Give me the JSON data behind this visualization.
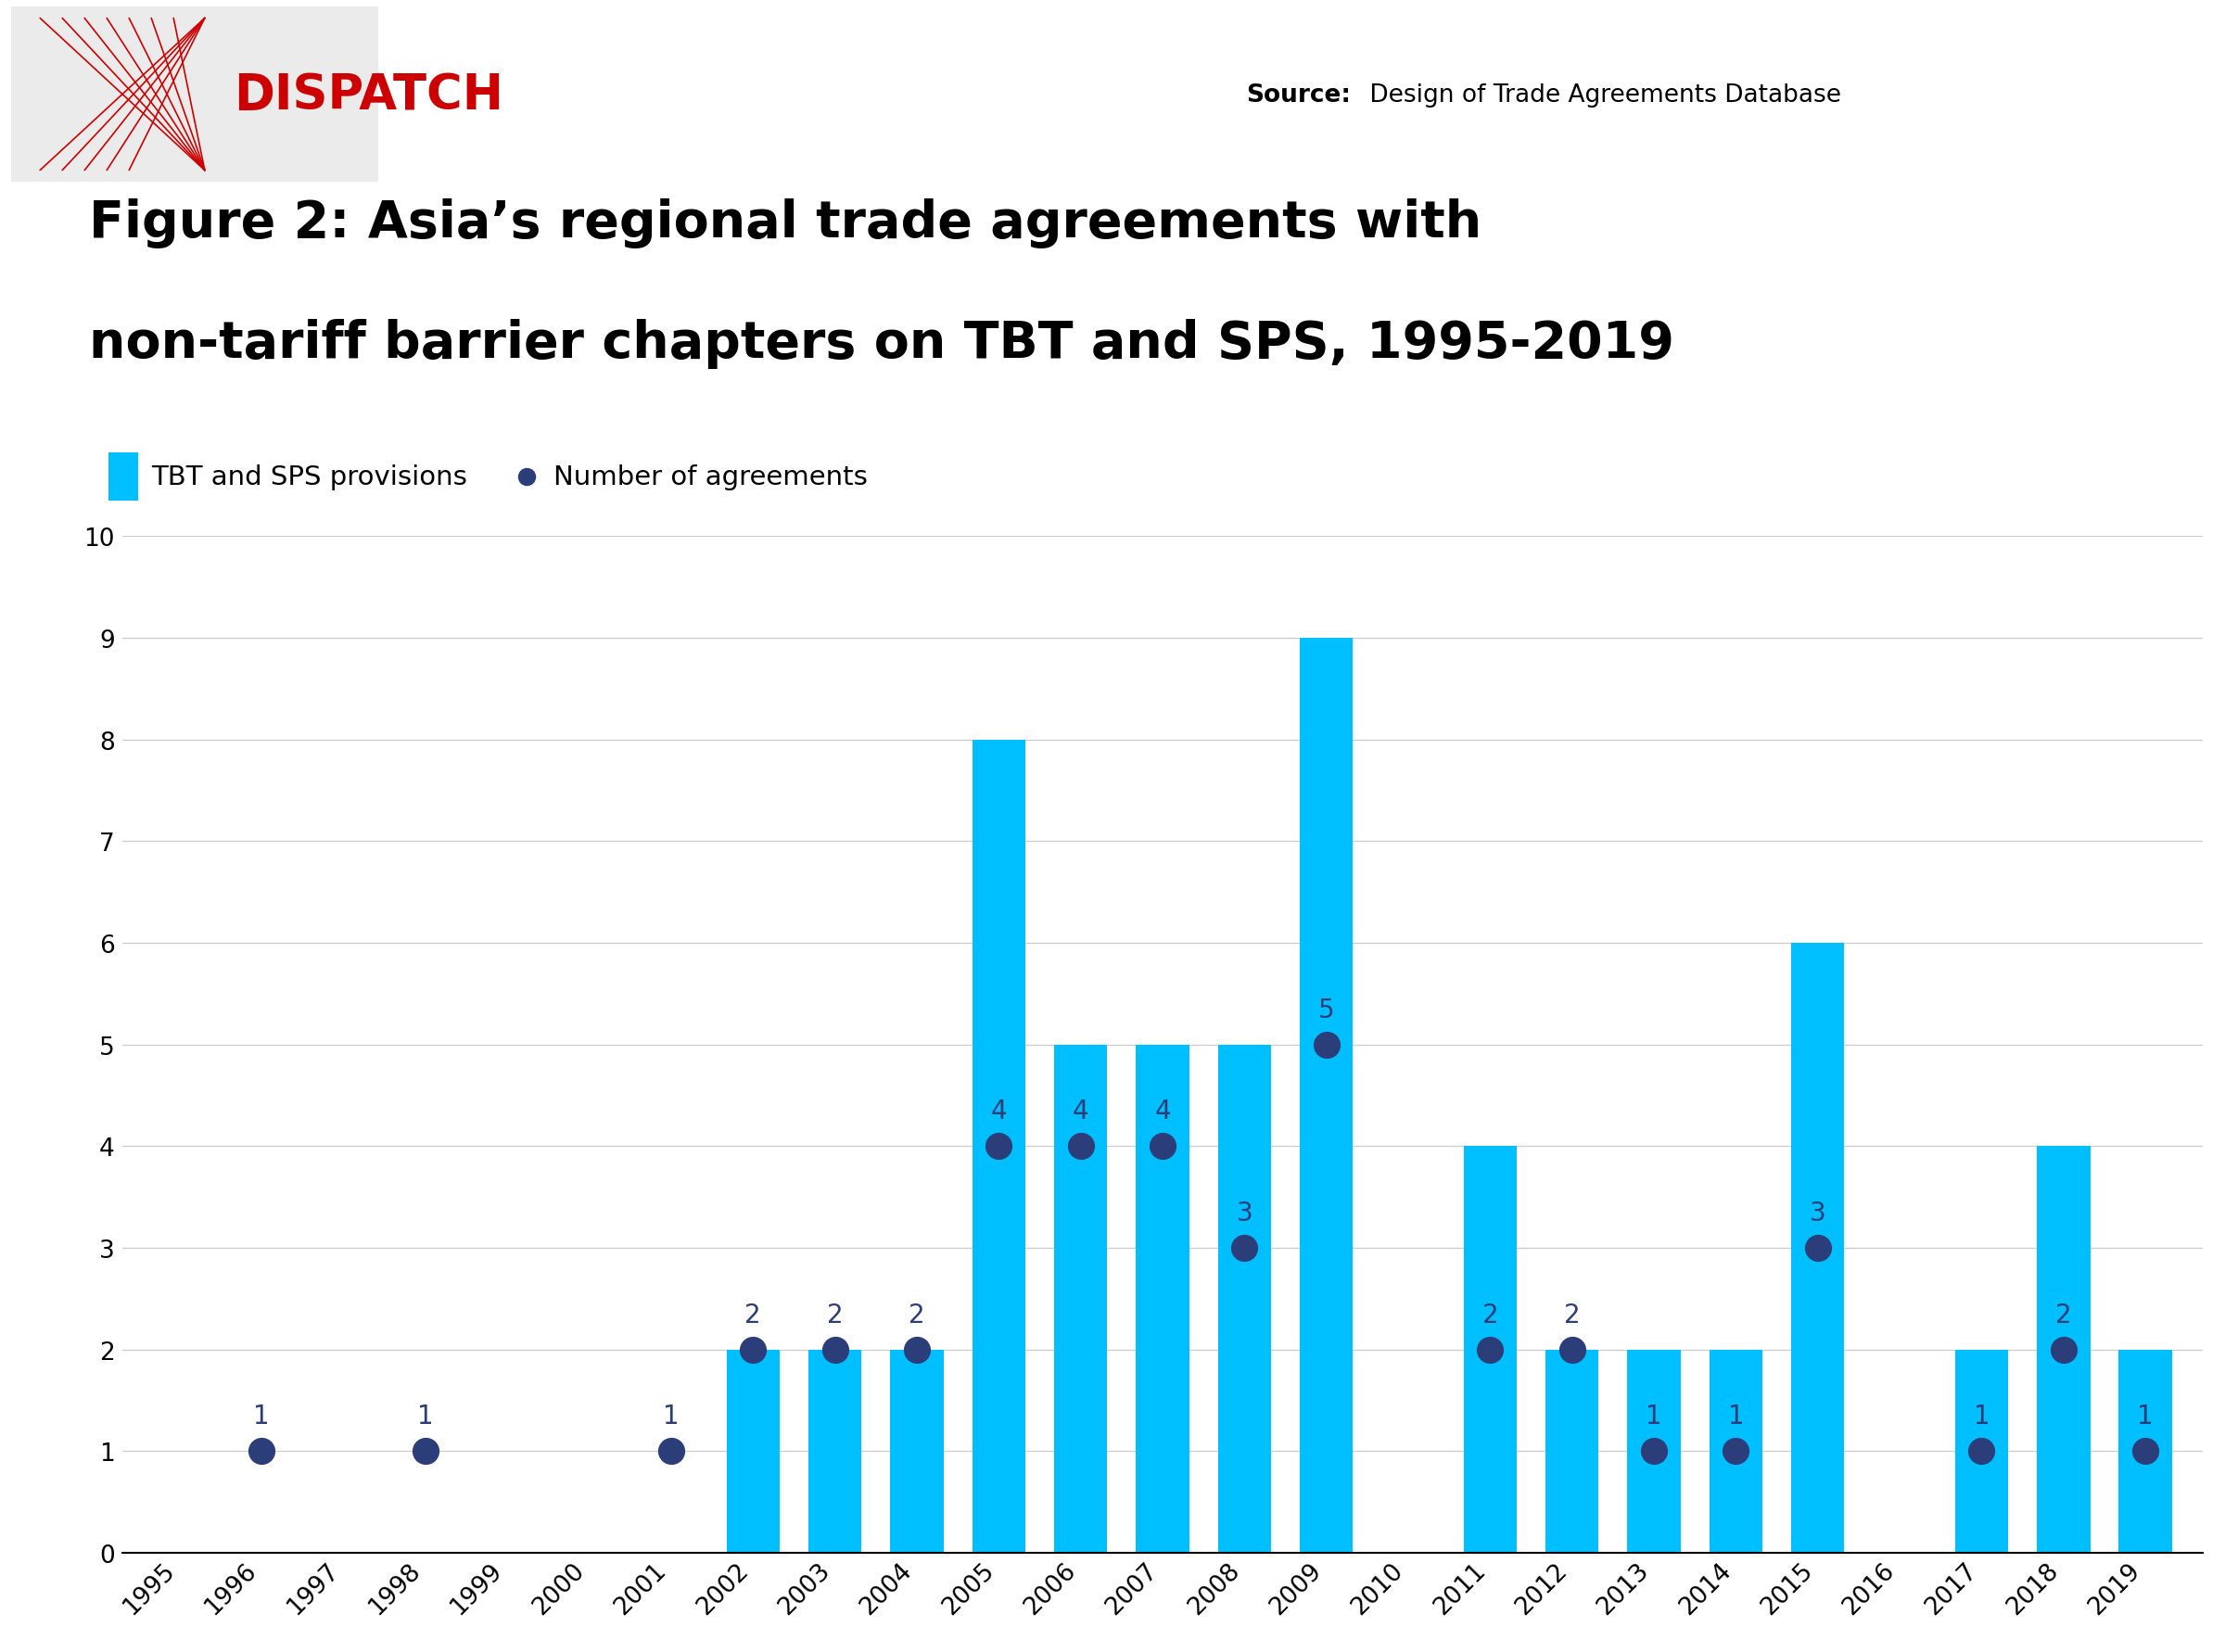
{
  "years": [
    1995,
    1996,
    1997,
    1998,
    1999,
    2000,
    2001,
    2002,
    2003,
    2004,
    2005,
    2006,
    2007,
    2008,
    2009,
    2010,
    2011,
    2012,
    2013,
    2014,
    2015,
    2016,
    2017,
    2018,
    2019
  ],
  "bar_values": [
    0,
    0,
    0,
    0,
    0,
    0,
    0,
    2,
    2,
    2,
    8,
    5,
    5,
    5,
    9,
    0,
    4,
    2,
    2,
    2,
    6,
    0,
    2,
    4,
    2
  ],
  "dot_values": [
    null,
    1,
    null,
    1,
    null,
    null,
    1,
    2,
    2,
    2,
    4,
    4,
    4,
    3,
    5,
    null,
    2,
    2,
    1,
    1,
    3,
    null,
    1,
    2,
    1
  ],
  "bar_color": "#00BFFF",
  "dot_color": "#2C3E7A",
  "dot_label_color": "#2C3E7A",
  "background_color": "#ffffff",
  "legend_bg_color": "#e8e8e8",
  "title_line1": "Figure 2: Asia’s regional trade agreements with",
  "title_line2": "non-tariff barrier chapters on TBT and SPS, 1995-2019",
  "source_text_bold": "Source:",
  "source_text_normal": " Design of Trade Agreements Database",
  "legend_bar_label": "TBT and SPS provisions",
  "legend_dot_label": "Number of agreements",
  "ylim": [
    0,
    10
  ],
  "yticks": [
    0,
    1,
    2,
    3,
    4,
    5,
    6,
    7,
    8,
    9,
    10
  ],
  "title_fontsize": 40,
  "axis_fontsize": 19,
  "source_fontsize": 19,
  "legend_fontsize": 21,
  "annotation_fontsize": 20,
  "dispatch_color": "#CC0000",
  "dispatch_fontsize": 38,
  "logo_bg_color": "#ebebeb"
}
